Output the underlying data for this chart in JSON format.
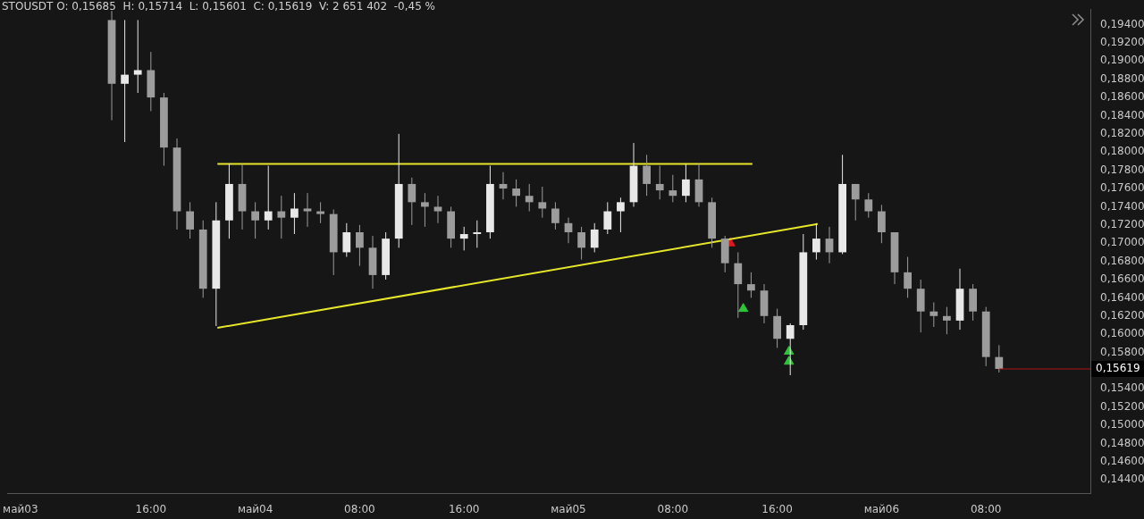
{
  "chart_data": {
    "type": "candlestick",
    "title": "STOUSDT O: 0,15685  H: 0,15714  L: 0,15601  C: 0,15619  V: 2 651 402  -0,45 %",
    "xlim": [
      "--05-03T05:00",
      "--05-06T16:00"
    ],
    "xticks": [
      {
        "value": "--05-03T06:00",
        "label": "май03"
      },
      {
        "value": "--05-03T16:00",
        "label": "16:00"
      },
      {
        "value": "--05-04T00:00",
        "label": "май04"
      },
      {
        "value": "--05-04T08:00",
        "label": "08:00"
      },
      {
        "value": "--05-04T16:00",
        "label": "16:00"
      },
      {
        "value": "--05-05T00:00",
        "label": "май05"
      },
      {
        "value": "--05-05T08:00",
        "label": "08:00"
      },
      {
        "value": "--05-05T16:00",
        "label": "16:00"
      },
      {
        "value": "--05-06T00:00",
        "label": "май06"
      },
      {
        "value": "--05-06T08:00",
        "label": "08:00"
      }
    ],
    "ylim": [
      0.1425,
      0.1957
    ],
    "yticks": [
      {
        "value": 0.144,
        "label": "0,14400"
      },
      {
        "value": 0.146,
        "label": "0,14600"
      },
      {
        "value": 0.148,
        "label": "0,14800"
      },
      {
        "value": 0.15,
        "label": "0,15000"
      },
      {
        "value": 0.152,
        "label": "0,15200"
      },
      {
        "value": 0.154,
        "label": "0,15400"
      },
      {
        "value": 0.158,
        "label": "0,15800"
      },
      {
        "value": 0.16,
        "label": "0,16000"
      },
      {
        "value": 0.162,
        "label": "0,16200"
      },
      {
        "value": 0.164,
        "label": "0,16400"
      },
      {
        "value": 0.166,
        "label": "0,16600"
      },
      {
        "value": 0.168,
        "label": "0,16800"
      },
      {
        "value": 0.17,
        "label": "0,17000"
      },
      {
        "value": 0.172,
        "label": "0,17200"
      },
      {
        "value": 0.174,
        "label": "0,17400"
      },
      {
        "value": 0.176,
        "label": "0,17600"
      },
      {
        "value": 0.178,
        "label": "0,17800"
      },
      {
        "value": 0.18,
        "label": "0,18000"
      },
      {
        "value": 0.182,
        "label": "0,18200"
      },
      {
        "value": 0.184,
        "label": "0,18400"
      },
      {
        "value": 0.186,
        "label": "0,18600"
      },
      {
        "value": 0.188,
        "label": "0,18800"
      },
      {
        "value": 0.19,
        "label": "0,19000"
      },
      {
        "value": 0.192,
        "label": "0,19200"
      },
      {
        "value": 0.194,
        "label": "0,19400"
      }
    ],
    "grid": false,
    "legend": false,
    "ref_lines": [
      {
        "axis": "y",
        "value": 0.15619,
        "label": "0,15619",
        "color": "#b01515"
      }
    ],
    "series": [
      {
        "type": "candlestick",
        "colors": [
          "#9c9c9c",
          "#e8e8e8",
          "#e8e8e8",
          "#9c9c9c",
          "#9c9c9c",
          "#9c9c9c",
          "#9c9c9c",
          "#9c9c9c",
          "#e8e8e8",
          "#e8e8e8",
          "#9c9c9c",
          "#9c9c9c",
          "#e8e8e8",
          "#9c9c9c",
          "#e8e8e8",
          "#9c9c9c",
          "#9c9c9c",
          "#9c9c9c",
          "#e8e8e8",
          "#9c9c9c",
          "#9c9c9c",
          "#e8e8e8",
          "#e8e8e8",
          "#9c9c9c",
          "#9c9c9c",
          "#9c9c9c",
          "#9c9c9c",
          "#e8e8e8",
          "#e8e8e8",
          "#e8e8e8",
          "#9c9c9c",
          "#9c9c9c",
          "#9c9c9c",
          "#9c9c9c",
          "#9c9c9c",
          "#9c9c9c",
          "#9c9c9c",
          "#e8e8e8",
          "#e8e8e8",
          "#e8e8e8",
          "#e8e8e8",
          "#9c9c9c",
          "#9c9c9c",
          "#9c9c9c",
          "#e8e8e8",
          "#9c9c9c",
          "#9c9c9c",
          "#9c9c9c",
          "#9c9c9c",
          "#9c9c9c",
          "#9c9c9c",
          "#9c9c9c",
          "#e8e8e8",
          "#e8e8e8",
          "#e8e8e8",
          "#9c9c9c",
          "#e8e8e8",
          "#9c9c9c",
          "#9c9c9c",
          "#9c9c9c",
          "#9c9c9c",
          "#9c9c9c",
          "#9c9c9c",
          "#9c9c9c",
          "#9c9c9c",
          "#e8e8e8",
          "#9c9c9c",
          "#9c9c9c",
          "#9c9c9c"
        ],
        "x": [
          "--05-03T13:00",
          "--05-03T14:00",
          "--05-03T15:00",
          "--05-03T16:00",
          "--05-03T17:00",
          "--05-03T18:00",
          "--05-03T19:00",
          "--05-03T20:00",
          "--05-03T21:00",
          "--05-03T22:00",
          "--05-03T23:00",
          "--05-04T00:00",
          "--05-04T01:00",
          "--05-04T02:00",
          "--05-04T03:00",
          "--05-04T04:00",
          "--05-04T05:00",
          "--05-04T06:00",
          "--05-04T07:00",
          "--05-04T08:00",
          "--05-04T09:00",
          "--05-04T10:00",
          "--05-04T11:00",
          "--05-04T12:00",
          "--05-04T13:00",
          "--05-04T14:00",
          "--05-04T15:00",
          "--05-04T16:00",
          "--05-04T17:00",
          "--05-04T18:00",
          "--05-04T19:00",
          "--05-04T20:00",
          "--05-04T21:00",
          "--05-04T22:00",
          "--05-04T23:00",
          "--05-05T00:00",
          "--05-05T01:00",
          "--05-05T02:00",
          "--05-05T03:00",
          "--05-05T04:00",
          "--05-05T05:00",
          "--05-05T06:00",
          "--05-05T07:00",
          "--05-05T08:00",
          "--05-05T09:00",
          "--05-05T10:00",
          "--05-05T11:00",
          "--05-05T12:00",
          "--05-05T13:00",
          "--05-05T14:00",
          "--05-05T15:00",
          "--05-05T16:00",
          "--05-05T17:00",
          "--05-05T18:00",
          "--05-05T19:00",
          "--05-05T20:00",
          "--05-05T21:00",
          "--05-05T22:00",
          "--05-05T23:00",
          "--05-06T00:00",
          "--05-06T01:00",
          "--05-06T02:00",
          "--05-06T03:00",
          "--05-06T04:00",
          "--05-06T05:00",
          "--05-06T06:00",
          "--05-06T07:00",
          "--05-06T08:00",
          "--05-06T09:00"
        ],
        "ohlc": [
          [
            0.1945,
            0.1955,
            0.1835,
            0.1875
          ],
          [
            0.1875,
            0.1945,
            0.1811,
            0.1885
          ],
          [
            0.1885,
            0.1945,
            0.1865,
            0.189
          ],
          [
            0.189,
            0.191,
            0.1845,
            0.186
          ],
          [
            0.186,
            0.1865,
            0.1785,
            0.1805
          ],
          [
            0.1805,
            0.1815,
            0.1715,
            0.1735
          ],
          [
            0.1735,
            0.1745,
            0.1705,
            0.1715
          ],
          [
            0.1715,
            0.1725,
            0.164,
            0.165
          ],
          [
            0.165,
            0.1745,
            0.1609,
            0.1725
          ],
          [
            0.1725,
            0.1787,
            0.1705,
            0.1765
          ],
          [
            0.1765,
            0.1787,
            0.1715,
            0.1735
          ],
          [
            0.1735,
            0.1745,
            0.1705,
            0.1725
          ],
          [
            0.1725,
            0.1785,
            0.1715,
            0.1735
          ],
          [
            0.1735,
            0.1752,
            0.1705,
            0.1728
          ],
          [
            0.1728,
            0.1755,
            0.171,
            0.1738
          ],
          [
            0.1738,
            0.1755,
            0.1718,
            0.1735
          ],
          [
            0.1735,
            0.1745,
            0.1722,
            0.1732
          ],
          [
            0.1732,
            0.1737,
            0.1665,
            0.169
          ],
          [
            0.169,
            0.1722,
            0.1685,
            0.1712
          ],
          [
            0.1712,
            0.172,
            0.1675,
            0.1695
          ],
          [
            0.1695,
            0.1708,
            0.165,
            0.1665
          ],
          [
            0.1665,
            0.1712,
            0.166,
            0.1705
          ],
          [
            0.1705,
            0.182,
            0.1695,
            0.1765
          ],
          [
            0.1765,
            0.1772,
            0.172,
            0.1745
          ],
          [
            0.1745,
            0.1755,
            0.1718,
            0.174
          ],
          [
            0.174,
            0.1752,
            0.1722,
            0.1735
          ],
          [
            0.1735,
            0.174,
            0.1695,
            0.1705
          ],
          [
            0.1705,
            0.1718,
            0.1692,
            0.171
          ],
          [
            0.171,
            0.1725,
            0.1695,
            0.1712
          ],
          [
            0.1712,
            0.1785,
            0.1705,
            0.1765
          ],
          [
            0.1765,
            0.1778,
            0.1748,
            0.176
          ],
          [
            0.176,
            0.177,
            0.174,
            0.1752
          ],
          [
            0.1752,
            0.1765,
            0.1735,
            0.1745
          ],
          [
            0.1745,
            0.1762,
            0.1728,
            0.1738
          ],
          [
            0.1738,
            0.1745,
            0.1715,
            0.1722
          ],
          [
            0.1722,
            0.1728,
            0.17,
            0.1712
          ],
          [
            0.1712,
            0.1718,
            0.1682,
            0.1695
          ],
          [
            0.1695,
            0.1722,
            0.169,
            0.1715
          ],
          [
            0.1715,
            0.1745,
            0.171,
            0.1735
          ],
          [
            0.1735,
            0.175,
            0.1712,
            0.1745
          ],
          [
            0.1745,
            0.181,
            0.174,
            0.1785
          ],
          [
            0.1785,
            0.1797,
            0.1752,
            0.1765
          ],
          [
            0.1765,
            0.1785,
            0.1748,
            0.1758
          ],
          [
            0.1758,
            0.1775,
            0.1745,
            0.1752
          ],
          [
            0.1752,
            0.1787,
            0.1745,
            0.177
          ],
          [
            0.177,
            0.1787,
            0.174,
            0.1745
          ],
          [
            0.1745,
            0.175,
            0.1695,
            0.1705
          ],
          [
            0.1705,
            0.1708,
            0.1668,
            0.1678
          ],
          [
            0.1678,
            0.169,
            0.1618,
            0.1655
          ],
          [
            0.1655,
            0.1668,
            0.164,
            0.1648
          ],
          [
            0.1648,
            0.1655,
            0.1612,
            0.162
          ],
          [
            0.162,
            0.1628,
            0.1585,
            0.1595
          ],
          [
            0.1595,
            0.1612,
            0.1555,
            0.161
          ],
          [
            0.161,
            0.171,
            0.1605,
            0.169
          ],
          [
            0.169,
            0.1722,
            0.1682,
            0.1705
          ],
          [
            0.1705,
            0.1718,
            0.1678,
            0.169
          ],
          [
            0.169,
            0.1797,
            0.1688,
            0.1765
          ],
          [
            0.1765,
            0.1765,
            0.1725,
            0.1748
          ],
          [
            0.1748,
            0.1755,
            0.1728,
            0.1735
          ],
          [
            0.1735,
            0.1742,
            0.17,
            0.1712
          ],
          [
            0.1712,
            0.1712,
            0.1655,
            0.1668
          ],
          [
            0.1668,
            0.1685,
            0.164,
            0.165
          ],
          [
            0.165,
            0.166,
            0.1602,
            0.1625
          ],
          [
            0.1625,
            0.1635,
            0.1608,
            0.162
          ],
          [
            0.162,
            0.163,
            0.16,
            0.1615
          ],
          [
            0.1615,
            0.1672,
            0.1605,
            0.165
          ],
          [
            0.165,
            0.1655,
            0.1615,
            0.1625
          ],
          [
            0.1625,
            0.163,
            0.1565,
            0.1575
          ],
          [
            0.1575,
            0.1588,
            0.1558,
            0.15619
          ]
        ]
      },
      {
        "type": "line",
        "color": "#e6e62a",
        "x": [
          "--05-03T21:06",
          "--05-05T14:06"
        ],
        "values": [
          0.1787,
          0.1787
        ]
      },
      {
        "type": "line",
        "color": "#e6e62a",
        "x": [
          "--05-03T21:06",
          "--05-05T19:06"
        ],
        "values": [
          0.1607,
          0.1721
        ]
      },
      {
        "type": "scatter",
        "color": "#2ec43a",
        "marker": "triangle",
        "x": [
          "--05-05T13:24",
          "--05-05T16:54",
          "--05-05T16:54"
        ],
        "values": [
          0.1628,
          0.1581,
          0.157
        ]
      },
      {
        "type": "scatter",
        "color": "#e01818",
        "marker": "triangle",
        "x": [
          "--05-05T12:24"
        ],
        "values": [
          0.17
        ]
      }
    ]
  }
}
